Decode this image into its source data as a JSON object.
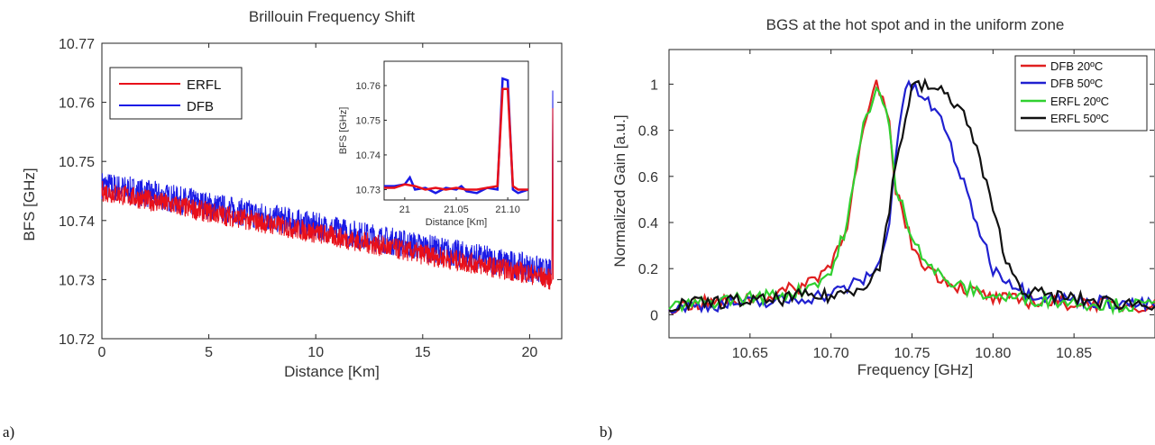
{
  "chart_data": [
    {
      "panel_label": "a)",
      "type": "line",
      "title": "Brillouin Frequency Shift",
      "xlabel": "Distance  [Km]",
      "ylabel": "BFS [GHz]",
      "xlim": [
        0,
        21.5
      ],
      "ylim": [
        10.72,
        10.77
      ],
      "xticks": [
        "0",
        "5",
        "10",
        "15",
        "20"
      ],
      "yticks": [
        "10.72",
        "10.73",
        "10.74",
        "10.75",
        "10.76",
        "10.77"
      ],
      "legend_position": "top-left",
      "series": [
        {
          "name": "ERFL",
          "color": "#e8101a",
          "x": [
            0,
            5,
            10,
            15,
            20,
            21.0,
            21.08
          ],
          "y": [
            10.745,
            10.7414,
            10.7379,
            10.7343,
            10.731,
            10.73,
            10.759
          ]
        },
        {
          "name": "DFB",
          "color": "#1a1ae6",
          "x": [
            0,
            5,
            10,
            15,
            20,
            21.0,
            21.08
          ],
          "y": [
            10.746,
            10.7425,
            10.739,
            10.7355,
            10.732,
            10.731,
            10.762
          ]
        }
      ],
      "inset": {
        "xlabel": "Distance [Km]",
        "ylabel": "BFS [GHz]",
        "xlim": [
          20.98,
          21.12
        ],
        "ylim": [
          10.727,
          10.767
        ],
        "xticks": [
          "21",
          "21.05",
          "21.10"
        ],
        "yticks": [
          "10.73",
          "10.74",
          "10.75",
          "10.76"
        ],
        "series": [
          {
            "name": "ERFL",
            "color": "#e8101a",
            "x": [
              20.98,
              20.99,
              21.0,
              21.01,
              21.02,
              21.03,
              21.04,
              21.05,
              21.06,
              21.07,
              21.08,
              21.09,
              21.095,
              21.1,
              21.105,
              21.11,
              21.12
            ],
            "y": [
              10.7305,
              10.7305,
              10.7315,
              10.731,
              10.73,
              10.7305,
              10.73,
              10.7305,
              10.73,
              10.73,
              10.7305,
              10.731,
              10.759,
              10.759,
              10.731,
              10.73,
              10.73
            ]
          },
          {
            "name": "DFB",
            "color": "#1a1ae6",
            "x": [
              20.98,
              20.99,
              21.0,
              21.005,
              21.01,
              21.02,
              21.03,
              21.04,
              21.05,
              21.055,
              21.06,
              21.07,
              21.08,
              21.09,
              21.095,
              21.1,
              21.105,
              21.11,
              21.12
            ],
            "y": [
              10.731,
              10.731,
              10.7315,
              10.7335,
              10.73,
              10.7305,
              10.729,
              10.7305,
              10.73,
              10.731,
              10.7295,
              10.729,
              10.7305,
              10.73,
              10.762,
              10.7615,
              10.73,
              10.729,
              10.73
            ]
          }
        ]
      }
    },
    {
      "panel_label": "b)",
      "type": "line",
      "title": "BGS at the hot spot and in the uniform zone",
      "xlabel": "Frequency [GHz]",
      "ylabel": "Normalized Gain [a.u.]",
      "xlim": [
        10.6,
        10.9
      ],
      "ylim": [
        -0.1,
        1.15
      ],
      "xticks": [
        "10.65",
        "10.70",
        "10.75",
        "10.80",
        "10.85"
      ],
      "yticks": [
        "0",
        "0.2",
        "0.4",
        "0.6",
        "0.8",
        "1"
      ],
      "legend_position": "top-right",
      "series": [
        {
          "name": "DFB  20ºC",
          "color": "#e02020",
          "x": [
            10.6,
            10.62,
            10.64,
            10.66,
            10.68,
            10.69,
            10.7,
            10.71,
            10.72,
            10.728,
            10.735,
            10.74,
            10.75,
            10.76,
            10.77,
            10.78,
            10.8,
            10.82,
            10.84,
            10.86,
            10.88,
            10.9
          ],
          "y": [
            0.03,
            0.05,
            0.06,
            0.08,
            0.12,
            0.16,
            0.22,
            0.4,
            0.8,
            0.99,
            0.88,
            0.55,
            0.3,
            0.2,
            0.15,
            0.12,
            0.07,
            0.06,
            0.05,
            0.05,
            0.04,
            0.04
          ]
        },
        {
          "name": "DFB  50ºC",
          "color": "#2020d0",
          "x": [
            10.6,
            10.62,
            10.64,
            10.66,
            10.68,
            10.7,
            10.71,
            10.72,
            10.73,
            10.735,
            10.74,
            10.745,
            10.75,
            10.76,
            10.77,
            10.78,
            10.79,
            10.8,
            10.82,
            10.84,
            10.86,
            10.88,
            10.9
          ],
          "y": [
            0.03,
            0.04,
            0.05,
            0.05,
            0.07,
            0.09,
            0.12,
            0.15,
            0.22,
            0.35,
            0.7,
            0.97,
            0.99,
            0.92,
            0.82,
            0.6,
            0.4,
            0.2,
            0.1,
            0.07,
            0.06,
            0.05,
            0.04
          ]
        },
        {
          "name": "ERFL 20ºC",
          "color": "#30d030",
          "x": [
            10.6,
            10.62,
            10.64,
            10.66,
            10.68,
            10.69,
            10.7,
            10.71,
            10.72,
            10.728,
            10.735,
            10.74,
            10.75,
            10.76,
            10.77,
            10.78,
            10.8,
            10.82,
            10.84,
            10.86,
            10.88,
            10.9
          ],
          "y": [
            0.03,
            0.05,
            0.07,
            0.08,
            0.1,
            0.14,
            0.18,
            0.4,
            0.82,
            0.99,
            0.86,
            0.55,
            0.35,
            0.22,
            0.15,
            0.12,
            0.08,
            0.07,
            0.06,
            0.05,
            0.04,
            0.04
          ]
        },
        {
          "name": "ERFL 50ºC",
          "color": "#111111",
          "x": [
            10.6,
            10.62,
            10.64,
            10.66,
            10.68,
            10.7,
            10.71,
            10.72,
            10.73,
            10.74,
            10.75,
            10.76,
            10.77,
            10.78,
            10.79,
            10.8,
            10.81,
            10.82,
            10.84,
            10.86,
            10.88,
            10.9
          ],
          "y": [
            0.04,
            0.05,
            0.06,
            0.06,
            0.08,
            0.08,
            0.1,
            0.13,
            0.2,
            0.65,
            0.99,
            0.99,
            0.96,
            0.9,
            0.72,
            0.45,
            0.2,
            0.1,
            0.08,
            0.06,
            0.05,
            0.05
          ]
        }
      ]
    }
  ]
}
